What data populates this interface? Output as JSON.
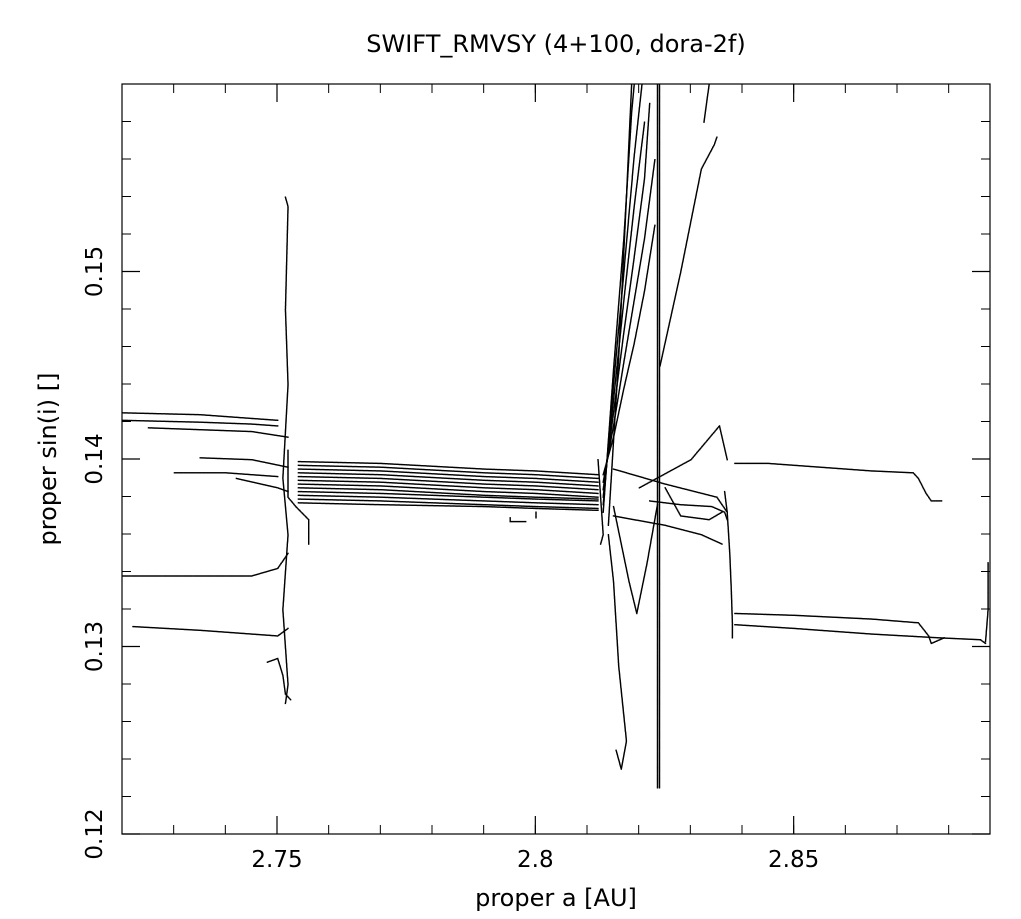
{
  "chart_data": {
    "type": "scatter",
    "title": "SWIFT_RMVSY (4+100, dora-2f)",
    "xlabel": "proper a [AU]",
    "ylabel": "proper sin(i) []",
    "xlim": [
      2.72,
      2.888
    ],
    "ylim": [
      0.12,
      0.16
    ],
    "x_ticks": [
      {
        "value": 2.75,
        "label": "2.75"
      },
      {
        "value": 2.8,
        "label": "2.8"
      },
      {
        "value": 2.85,
        "label": "2.85"
      }
    ],
    "y_ticks": [
      {
        "value": 0.12,
        "label": "0.12"
      },
      {
        "value": 0.13,
        "label": "0.13"
      },
      {
        "value": 0.14,
        "label": "0.14"
      },
      {
        "value": 0.15,
        "label": "0.15"
      }
    ],
    "x_minor_step": 0.01,
    "y_minor_step": 0.002,
    "grid": false,
    "legend": "none",
    "color": "#000000",
    "series": [
      {
        "points": [
          [
            2.72,
            0.1425
          ],
          [
            2.735,
            0.1424
          ],
          [
            2.745,
            0.1422
          ],
          [
            2.75,
            0.1421
          ]
        ]
      },
      {
        "points": [
          [
            2.72,
            0.1421
          ],
          [
            2.735,
            0.142
          ],
          [
            2.745,
            0.1419
          ],
          [
            2.75,
            0.1418
          ]
        ]
      },
      {
        "points": [
          [
            2.725,
            0.1417
          ],
          [
            2.735,
            0.1416
          ],
          [
            2.745,
            0.1415
          ],
          [
            2.752,
            0.1412
          ]
        ]
      },
      {
        "points": [
          [
            2.735,
            0.1401
          ],
          [
            2.745,
            0.14
          ],
          [
            2.752,
            0.1396
          ]
        ]
      },
      {
        "points": [
          [
            2.73,
            0.1393
          ],
          [
            2.74,
            0.1393
          ],
          [
            2.75,
            0.1391
          ]
        ]
      },
      {
        "points": [
          [
            2.742,
            0.139
          ],
          [
            2.75,
            0.1385
          ],
          [
            2.752,
            0.1383
          ]
        ]
      },
      {
        "points": [
          [
            2.72,
            0.1338
          ],
          [
            2.735,
            0.1338
          ],
          [
            2.745,
            0.1338
          ],
          [
            2.75,
            0.1342
          ],
          [
            2.752,
            0.135
          ]
        ]
      },
      {
        "points": [
          [
            2.722,
            0.1311
          ],
          [
            2.735,
            0.1309
          ],
          [
            2.745,
            0.1307
          ],
          [
            2.75,
            0.1306
          ],
          [
            2.752,
            0.131
          ]
        ]
      },
      {
        "points": [
          [
            2.748,
            0.1292
          ],
          [
            2.75,
            0.1294
          ],
          [
            2.751,
            0.1285
          ],
          [
            2.7515,
            0.1275
          ],
          [
            2.7525,
            0.1272
          ]
        ]
      },
      {
        "points": [
          [
            2.7515,
            0.154
          ],
          [
            2.752,
            0.1535
          ],
          [
            2.7515,
            0.148
          ],
          [
            2.752,
            0.144
          ],
          [
            2.751,
            0.139
          ],
          [
            2.752,
            0.136
          ],
          [
            2.751,
            0.132
          ],
          [
            2.752,
            0.128
          ],
          [
            2.7515,
            0.127
          ]
        ]
      },
      {
        "points": [
          [
            2.752,
            0.1405
          ],
          [
            2.752,
            0.138
          ],
          [
            2.7535,
            0.1375
          ],
          [
            2.756,
            0.1368
          ],
          [
            2.756,
            0.1355
          ]
        ]
      },
      {
        "points": [
          [
            2.754,
            0.1399
          ],
          [
            2.77,
            0.1398
          ],
          [
            2.79,
            0.1395
          ],
          [
            2.8,
            0.1394
          ],
          [
            2.812,
            0.1392
          ]
        ]
      },
      {
        "points": [
          [
            2.754,
            0.1397
          ],
          [
            2.77,
            0.1396
          ],
          [
            2.79,
            0.1393
          ],
          [
            2.8,
            0.1392
          ],
          [
            2.812,
            0.139
          ]
        ]
      },
      {
        "points": [
          [
            2.754,
            0.1395
          ],
          [
            2.77,
            0.1394
          ],
          [
            2.79,
            0.1391
          ],
          [
            2.8,
            0.139
          ],
          [
            2.812,
            0.1388
          ]
        ]
      },
      {
        "points": [
          [
            2.754,
            0.1393
          ],
          [
            2.77,
            0.1392
          ],
          [
            2.79,
            0.1389
          ],
          [
            2.8,
            0.1388
          ],
          [
            2.812,
            0.1386
          ]
        ]
      },
      {
        "points": [
          [
            2.754,
            0.1391
          ],
          [
            2.77,
            0.139
          ],
          [
            2.79,
            0.1387
          ],
          [
            2.8,
            0.1386
          ],
          [
            2.812,
            0.1384
          ]
        ]
      },
      {
        "points": [
          [
            2.754,
            0.1389
          ],
          [
            2.77,
            0.1388
          ],
          [
            2.79,
            0.1385
          ],
          [
            2.8,
            0.1384
          ],
          [
            2.812,
            0.1382
          ]
        ]
      },
      {
        "points": [
          [
            2.754,
            0.1387
          ],
          [
            2.77,
            0.1386
          ],
          [
            2.79,
            0.1383
          ],
          [
            2.8,
            0.1382
          ],
          [
            2.812,
            0.138
          ]
        ]
      },
      {
        "points": [
          [
            2.754,
            0.1385
          ],
          [
            2.77,
            0.1384
          ],
          [
            2.79,
            0.1381
          ],
          [
            2.8,
            0.138
          ],
          [
            2.812,
            0.1379
          ]
        ]
      },
      {
        "points": [
          [
            2.754,
            0.1383
          ],
          [
            2.77,
            0.1382
          ],
          [
            2.79,
            0.138
          ],
          [
            2.8,
            0.1379
          ],
          [
            2.812,
            0.1378
          ]
        ]
      },
      {
        "points": [
          [
            2.754,
            0.1381
          ],
          [
            2.77,
            0.138
          ],
          [
            2.79,
            0.1378
          ],
          [
            2.8,
            0.1377
          ],
          [
            2.812,
            0.1376
          ]
        ]
      },
      {
        "points": [
          [
            2.754,
            0.1379
          ],
          [
            2.77,
            0.1378
          ],
          [
            2.79,
            0.1376
          ],
          [
            2.8,
            0.1375
          ],
          [
            2.812,
            0.1374
          ]
        ]
      },
      {
        "points": [
          [
            2.754,
            0.1377
          ],
          [
            2.77,
            0.1376
          ],
          [
            2.79,
            0.1375
          ],
          [
            2.8,
            0.1374
          ],
          [
            2.812,
            0.1373
          ]
        ]
      },
      {
        "points": [
          [
            2.795,
            0.1369
          ],
          [
            2.795,
            0.1367
          ],
          [
            2.798,
            0.1367
          ]
        ]
      },
      {
        "points": [
          [
            2.8,
            0.1369
          ],
          [
            2.8,
            0.1372
          ]
        ]
      },
      {
        "points": [
          [
            2.812,
            0.14
          ],
          [
            2.8125,
            0.138
          ],
          [
            2.813,
            0.136
          ],
          [
            2.8125,
            0.1355
          ]
        ]
      },
      {
        "points": [
          [
            2.813,
            0.1392
          ],
          [
            2.815,
            0.1412
          ],
          [
            2.817,
            0.1438
          ],
          [
            2.819,
            0.1462
          ],
          [
            2.821,
            0.149
          ],
          [
            2.823,
            0.1525
          ]
        ]
      },
      {
        "points": [
          [
            2.813,
            0.1388
          ],
          [
            2.815,
            0.1418
          ],
          [
            2.817,
            0.1452
          ],
          [
            2.819,
            0.1485
          ],
          [
            2.821,
            0.1518
          ],
          [
            2.823,
            0.156
          ]
        ]
      },
      {
        "points": [
          [
            2.813,
            0.1384
          ],
          [
            2.815,
            0.1425
          ],
          [
            2.817,
            0.1468
          ],
          [
            2.819,
            0.1508
          ],
          [
            2.821,
            0.155
          ],
          [
            2.822,
            0.159
          ]
        ]
      },
      {
        "points": [
          [
            2.813,
            0.138
          ],
          [
            2.815,
            0.1432
          ],
          [
            2.817,
            0.1485
          ],
          [
            2.819,
            0.1535
          ],
          [
            2.821,
            0.158
          ]
        ]
      },
      {
        "points": [
          [
            2.813,
            0.1376
          ],
          [
            2.815,
            0.144
          ],
          [
            2.817,
            0.15
          ],
          [
            2.819,
            0.1562
          ],
          [
            2.8205,
            0.16
          ]
        ]
      },
      {
        "points": [
          [
            2.813,
            0.1372
          ],
          [
            2.815,
            0.1448
          ],
          [
            2.817,
            0.1518
          ],
          [
            2.8185,
            0.1585
          ],
          [
            2.819,
            0.16
          ]
        ]
      },
      {
        "points": [
          [
            2.814,
            0.1365
          ],
          [
            2.816,
            0.1455
          ],
          [
            2.8175,
            0.154
          ],
          [
            2.8185,
            0.16
          ]
        ]
      },
      {
        "points": [
          [
            2.814,
            0.136
          ],
          [
            2.815,
            0.1335
          ],
          [
            2.816,
            0.129
          ],
          [
            2.8175,
            0.125
          ],
          [
            2.8165,
            0.1235
          ],
          [
            2.8155,
            0.1245
          ]
        ]
      },
      {
        "points": [
          [
            2.815,
            0.1375
          ],
          [
            2.818,
            0.1335
          ],
          [
            2.8195,
            0.1318
          ],
          [
            2.8215,
            0.1345
          ],
          [
            2.8235,
            0.1376
          ]
        ]
      },
      {
        "points": [
          [
            2.815,
            0.137
          ],
          [
            2.825,
            0.1365
          ],
          [
            2.832,
            0.136
          ],
          [
            2.836,
            0.1355
          ]
        ]
      },
      {
        "points": [
          [
            2.815,
            0.1395
          ],
          [
            2.825,
            0.1387
          ],
          [
            2.835,
            0.138
          ],
          [
            2.837,
            0.1372
          ]
        ]
      },
      {
        "points": [
          [
            2.82,
            0.1385
          ],
          [
            2.83,
            0.14
          ],
          [
            2.8355,
            0.1418
          ],
          [
            2.837,
            0.14
          ]
        ]
      },
      {
        "points": [
          [
            2.825,
            0.1385
          ],
          [
            2.828,
            0.137
          ],
          [
            2.8335,
            0.1368
          ],
          [
            2.836,
            0.1372
          ]
        ]
      },
      {
        "points": [
          [
            2.822,
            0.1378
          ],
          [
            2.828,
            0.1376
          ],
          [
            2.834,
            0.1375
          ],
          [
            2.8365,
            0.1372
          ],
          [
            2.837,
            0.1368
          ]
        ]
      },
      {
        "points": [
          [
            2.8235,
            0.1225
          ],
          [
            2.8235,
            0.13
          ],
          [
            2.8235,
            0.14
          ],
          [
            2.8235,
            0.15
          ],
          [
            2.8235,
            0.16
          ]
        ]
      },
      {
        "points": [
          [
            2.8239,
            0.1225
          ],
          [
            2.8239,
            0.14
          ],
          [
            2.8239,
            0.16
          ]
        ]
      },
      {
        "points": [
          [
            2.824,
            0.145
          ],
          [
            2.828,
            0.15
          ],
          [
            2.832,
            0.1555
          ],
          [
            2.8345,
            0.1568
          ],
          [
            2.835,
            0.1572
          ]
        ]
      },
      {
        "points": [
          [
            2.8325,
            0.158
          ],
          [
            2.8335,
            0.16
          ]
        ]
      },
      {
        "points": [
          [
            2.8365,
            0.1383
          ],
          [
            2.837,
            0.1372
          ],
          [
            2.8375,
            0.135
          ],
          [
            2.8378,
            0.133
          ],
          [
            2.838,
            0.1313
          ],
          [
            2.838,
            0.1305
          ]
        ]
      },
      {
        "points": [
          [
            2.8385,
            0.1398
          ],
          [
            2.845,
            0.1398
          ],
          [
            2.855,
            0.1396
          ],
          [
            2.865,
            0.1394
          ],
          [
            2.873,
            0.1393
          ],
          [
            2.874,
            0.139
          ],
          [
            2.8755,
            0.1382
          ],
          [
            2.8765,
            0.1378
          ],
          [
            2.8785,
            0.1378
          ]
        ]
      },
      {
        "points": [
          [
            2.8385,
            0.1318
          ],
          [
            2.85,
            0.1317
          ],
          [
            2.865,
            0.1315
          ],
          [
            2.874,
            0.1313
          ],
          [
            2.876,
            0.1306
          ],
          [
            2.8765,
            0.1302
          ],
          [
            2.879,
            0.1305
          ]
        ]
      },
      {
        "points": [
          [
            2.8385,
            0.1312
          ],
          [
            2.85,
            0.131
          ],
          [
            2.865,
            0.1307
          ],
          [
            2.878,
            0.1305
          ],
          [
            2.886,
            0.1304
          ],
          [
            2.887,
            0.1302
          ]
        ]
      },
      {
        "points": [
          [
            2.887,
            0.1303
          ],
          [
            2.8875,
            0.132
          ],
          [
            2.8875,
            0.1345
          ]
        ]
      }
    ]
  }
}
